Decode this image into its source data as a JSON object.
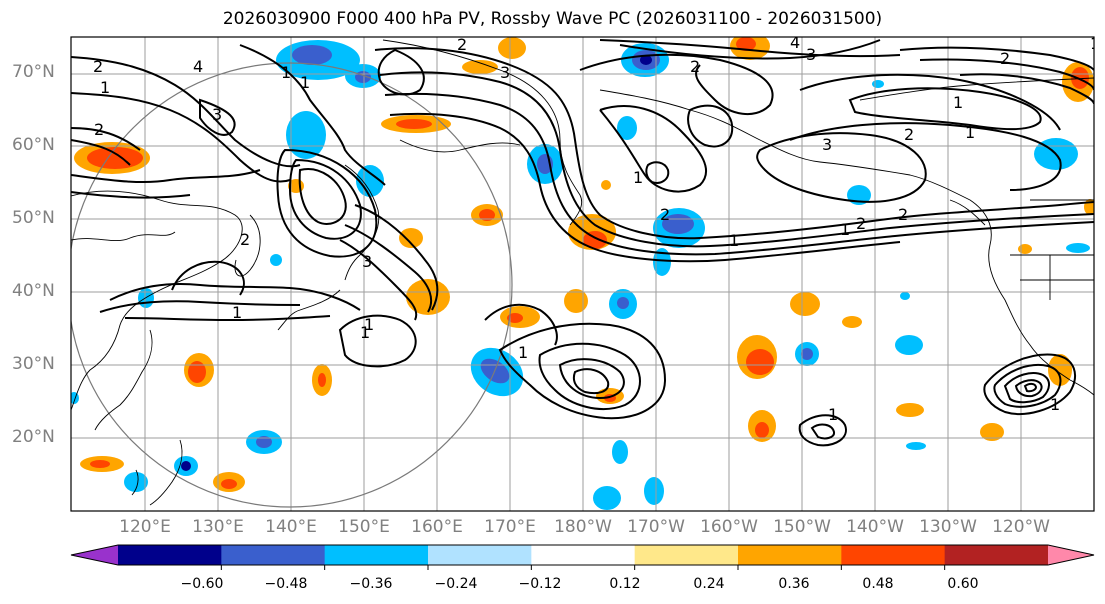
{
  "title": "2026030900 F000 400 hPa PV, Rossby Wave PC (2026031100 - 2026031500)",
  "lat_labels": [
    "70°N",
    "60°N",
    "50°N",
    "40°N",
    "30°N",
    "20°N"
  ],
  "lon_labels": [
    "120°E",
    "130°E",
    "140°E",
    "150°E",
    "160°E",
    "170°E",
    "180°W",
    "170°W",
    "160°W",
    "150°W",
    "140°W",
    "130°W",
    "120°W"
  ],
  "contour_labels": [
    "2",
    "4",
    "3",
    "1",
    "2",
    "1",
    "1",
    "2",
    "3",
    "2",
    "1",
    "3",
    "2",
    "1",
    "1",
    "2",
    "1",
    "4",
    "3",
    "2",
    "1",
    "1",
    "3",
    "2",
    "1",
    "2",
    "2",
    "1",
    "1",
    "1",
    "1",
    "1"
  ],
  "colorbar": {
    "ticks": [
      "−0.60",
      "−0.48",
      "−0.36",
      "−0.24",
      "−0.12",
      "0.12",
      "0.24",
      "0.36",
      "0.48",
      "0.60"
    ],
    "colors": [
      "#9932cc",
      "#00008b",
      "#3a5fcd",
      "#00bfff",
      "#b0e2ff",
      "#ffffff",
      "#ffe88a",
      "#ffa500",
      "#ff4500",
      "#b22222",
      "#ff88aa"
    ]
  },
  "anomaly_colors": {
    "neg_outer": "#00bfff",
    "neg_mid": "#3a5fcd",
    "neg_core": "#00008b",
    "pos_outer": "#ffa500",
    "pos_mid": "#ff4500",
    "pos_core": "#b22222",
    "pos_faint": "#ffe88a"
  }
}
